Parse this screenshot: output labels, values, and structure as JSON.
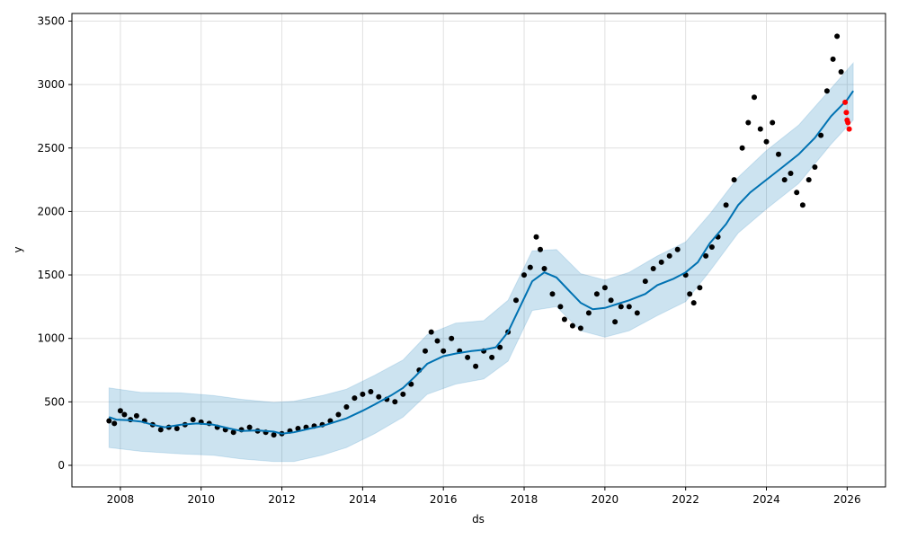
{
  "chart_data": {
    "type": "line",
    "xlabel": "ds",
    "ylabel": "y",
    "xlim": [
      2006.8,
      2026.95
    ],
    "ylim": [
      -170,
      3560
    ],
    "xticks": [
      2008,
      2010,
      2012,
      2014,
      2016,
      2018,
      2020,
      2022,
      2024,
      2026
    ],
    "yticks": [
      0,
      500,
      1000,
      1500,
      2000,
      2500,
      3000,
      3500
    ],
    "grid": true,
    "colors": {
      "forecast": "#0072B2",
      "interval": "#0072B2",
      "observed": "#000000",
      "recent": "#ff0000"
    },
    "series": [
      {
        "role": "forecast",
        "x": [
          2007.72,
          2007.9,
          2008.2,
          2008.5,
          2008.8,
          2009.1,
          2009.5,
          2009.9,
          2010.3,
          2010.7,
          2011.0,
          2011.4,
          2011.8,
          2012.0,
          2012.3,
          2012.7,
          2013.0,
          2013.3,
          2013.6,
          2014.0,
          2014.3,
          2014.7,
          2015.0,
          2015.3,
          2015.6,
          2016.0,
          2016.3,
          2016.7,
          2017.0,
          2017.3,
          2017.6,
          2017.9,
          2018.2,
          2018.5,
          2018.8,
          2019.1,
          2019.4,
          2019.7,
          2020.0,
          2020.3,
          2020.6,
          2021.0,
          2021.3,
          2021.7,
          2022.0,
          2022.3,
          2022.6,
          2023.0,
          2023.3,
          2023.6,
          2024.0,
          2024.4,
          2024.8,
          2025.2,
          2025.6,
          2026.0,
          2026.15
        ],
        "y": [
          380,
          360,
          355,
          345,
          320,
          300,
          320,
          330,
          320,
          290,
          270,
          275,
          265,
          250,
          260,
          290,
          310,
          340,
          370,
          430,
          480,
          550,
          610,
          700,
          800,
          860,
          880,
          900,
          910,
          930,
          1050,
          1250,
          1450,
          1520,
          1480,
          1380,
          1280,
          1230,
          1240,
          1270,
          1300,
          1350,
          1420,
          1470,
          1520,
          1600,
          1750,
          1900,
          2050,
          2150,
          2250,
          2350,
          2450,
          2580,
          2750,
          2880,
          2950
        ]
      },
      {
        "role": "uncertainty-interval",
        "x": [
          2007.72,
          2008.5,
          2009.5,
          2010.3,
          2011.0,
          2011.8,
          2012.3,
          2013.0,
          2013.6,
          2014.3,
          2015.0,
          2015.6,
          2016.3,
          2017.0,
          2017.6,
          2018.2,
          2018.8,
          2019.4,
          2020.0,
          2020.6,
          2021.3,
          2022.0,
          2022.6,
          2023.3,
          2024.0,
          2024.8,
          2025.6,
          2026.15
        ],
        "upper": [
          610,
          575,
          570,
          550,
          520,
          495,
          505,
          550,
          600,
          710,
          830,
          1030,
          1120,
          1140,
          1300,
          1690,
          1700,
          1510,
          1460,
          1520,
          1650,
          1760,
          1980,
          2270,
          2480,
          2680,
          2970,
          3170
        ],
        "lower": [
          140,
          110,
          90,
          80,
          50,
          30,
          30,
          80,
          140,
          250,
          380,
          560,
          640,
          680,
          820,
          1220,
          1250,
          1060,
          1010,
          1060,
          1180,
          1290,
          1530,
          1830,
          2020,
          2220,
          2530,
          2720
        ]
      },
      {
        "role": "observed",
        "x": [
          2007.72,
          2007.85,
          2008.0,
          2008.1,
          2008.25,
          2008.4,
          2008.6,
          2008.8,
          2009.0,
          2009.2,
          2009.4,
          2009.6,
          2009.8,
          2010.0,
          2010.2,
          2010.4,
          2010.6,
          2010.8,
          2011.0,
          2011.2,
          2011.4,
          2011.6,
          2011.8,
          2012.0,
          2012.2,
          2012.4,
          2012.6,
          2012.8,
          2013.0,
          2013.2,
          2013.4,
          2013.6,
          2013.8,
          2014.0,
          2014.2,
          2014.4,
          2014.6,
          2014.8,
          2015.0,
          2015.2,
          2015.4,
          2015.55,
          2015.7,
          2015.85,
          2016.0,
          2016.2,
          2016.4,
          2016.6,
          2016.8,
          2017.0,
          2017.2,
          2017.4,
          2017.6,
          2017.8,
          2018.0,
          2018.15,
          2018.3,
          2018.4,
          2018.5,
          2018.7,
          2018.9,
          2019.0,
          2019.2,
          2019.4,
          2019.6,
          2019.8,
          2020.0,
          2020.15,
          2020.25,
          2020.4,
          2020.6,
          2020.8,
          2021.0,
          2021.2,
          2021.4,
          2021.6,
          2021.8,
          2022.0,
          2022.1,
          2022.2,
          2022.35,
          2022.5,
          2022.65,
          2022.8,
          2023.0,
          2023.2,
          2023.4,
          2023.55,
          2023.7,
          2023.85,
          2024.0,
          2024.15,
          2024.3,
          2024.45,
          2024.6,
          2024.75,
          2024.9,
          2025.05,
          2025.2,
          2025.35,
          2025.5,
          2025.65,
          2025.75,
          2025.85
        ],
        "y": [
          350,
          330,
          430,
          400,
          360,
          390,
          350,
          320,
          280,
          300,
          290,
          320,
          360,
          340,
          330,
          300,
          280,
          260,
          280,
          300,
          270,
          260,
          240,
          250,
          270,
          290,
          300,
          310,
          320,
          350,
          400,
          460,
          530,
          560,
          580,
          540,
          520,
          500,
          560,
          640,
          750,
          900,
          1050,
          980,
          900,
          1000,
          900,
          850,
          780,
          900,
          850,
          930,
          1050,
          1300,
          1500,
          1560,
          1800,
          1700,
          1550,
          1350,
          1250,
          1150,
          1100,
          1080,
          1200,
          1350,
          1400,
          1300,
          1130,
          1250,
          1250,
          1200,
          1450,
          1550,
          1600,
          1650,
          1700,
          1500,
          1350,
          1280,
          1400,
          1650,
          1720,
          1800,
          2050,
          2250,
          2500,
          2700,
          2900,
          2650,
          2550,
          2700,
          2450,
          2250,
          2300,
          2150,
          2050,
          2250,
          2350,
          2600,
          2950,
          3200,
          3380,
          3100
        ]
      },
      {
        "role": "recent",
        "x": [
          2025.95,
          2025.98,
          2026.0,
          2026.02,
          2026.05
        ],
        "y": [
          2860,
          2780,
          2720,
          2700,
          2650
        ]
      }
    ]
  }
}
